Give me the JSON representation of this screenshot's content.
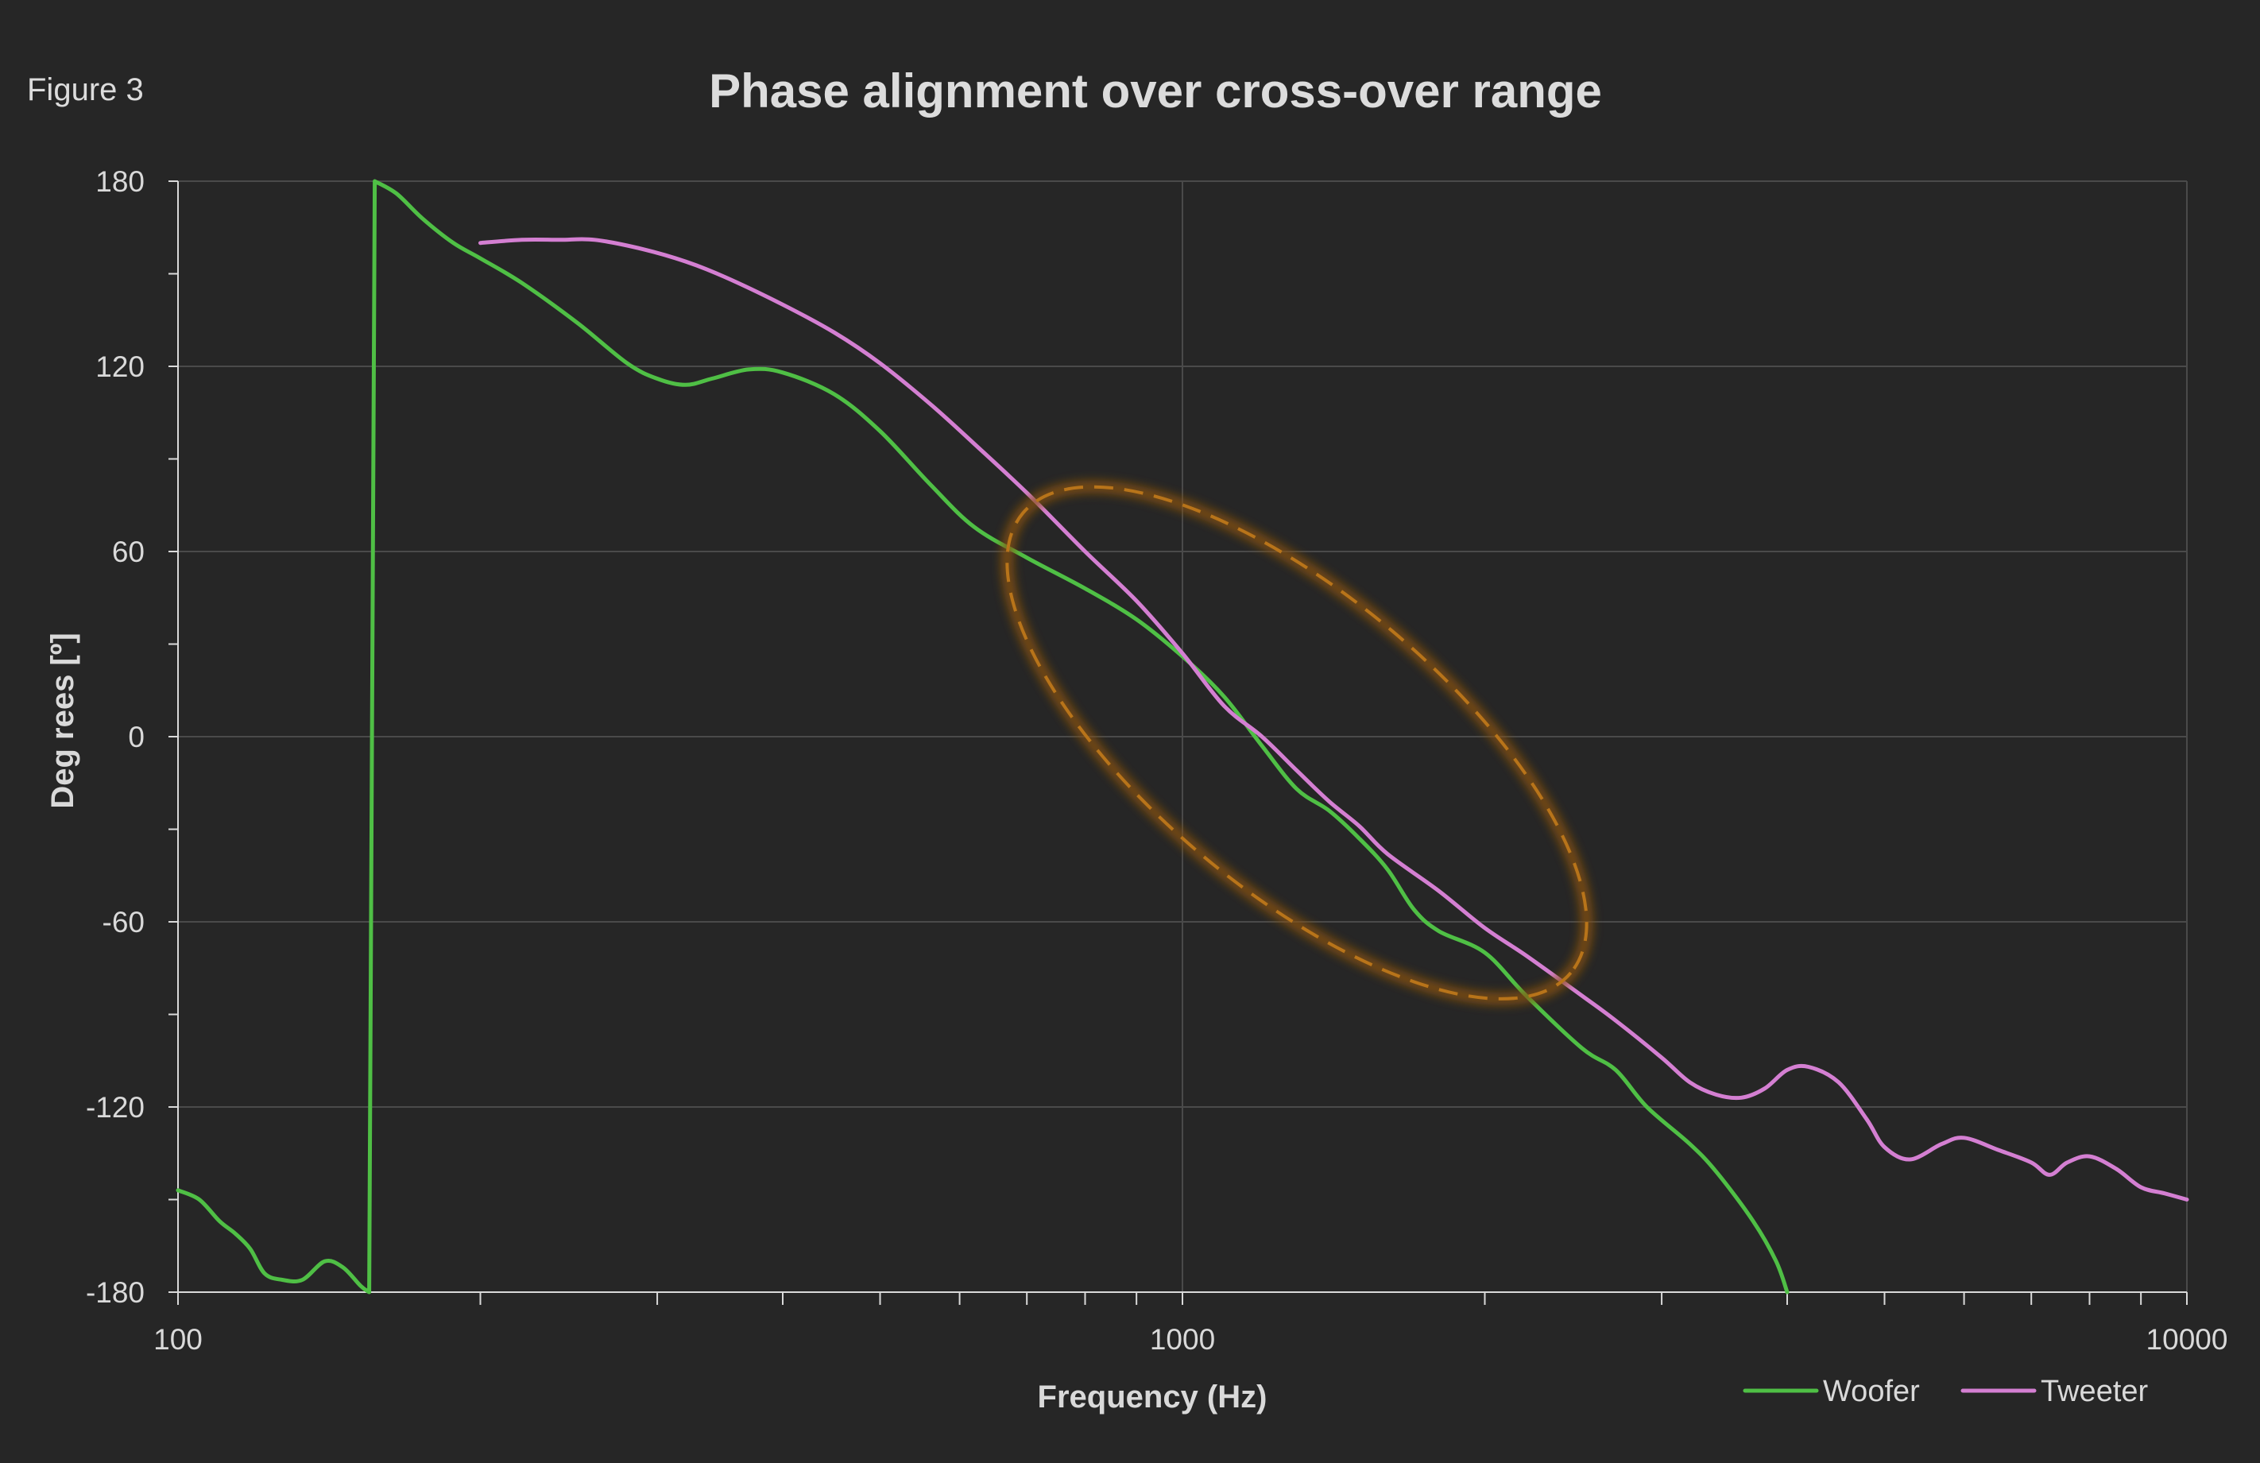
{
  "figure_label": "Figure 3",
  "colors": {
    "background": "#262626",
    "gridline": "#4a4a4a",
    "axis": "#d9d9d9",
    "text": "#d9d9d9",
    "highlight": "#b8741a"
  },
  "chart_data": {
    "type": "line",
    "title": "Phase alignment over cross-over range",
    "xlabel": "Frequency (Hz)",
    "ylabel": "Deg rees [º]",
    "x_scale": "log",
    "xlim": [
      100,
      10000
    ],
    "ylim": [
      -180,
      180
    ],
    "x_tick_labels": [
      "100",
      "1000",
      "10000"
    ],
    "y_tick_labels": [
      "180",
      "120",
      "60",
      "0",
      "-60",
      "-120",
      "-180"
    ],
    "grid": true,
    "legend_position": "bottom-right",
    "series": [
      {
        "name": "Woofer",
        "color": "#4fbf45",
        "points": [
          [
            100,
            -147
          ],
          [
            105,
            -150
          ],
          [
            110,
            -157
          ],
          [
            114,
            -161
          ],
          [
            118,
            -166
          ],
          [
            122,
            -174
          ],
          [
            127,
            -176
          ],
          [
            133,
            -176
          ],
          [
            140,
            -170
          ],
          [
            146,
            -172
          ],
          [
            152,
            -178
          ],
          [
            155,
            -180
          ],
          [
            157,
            180
          ],
          [
            165,
            176
          ],
          [
            175,
            168
          ],
          [
            188,
            160
          ],
          [
            200,
            155
          ],
          [
            220,
            147
          ],
          [
            250,
            134
          ],
          [
            280,
            121
          ],
          [
            300,
            116
          ],
          [
            320,
            114
          ],
          [
            340,
            116
          ],
          [
            370,
            119
          ],
          [
            400,
            118
          ],
          [
            450,
            111
          ],
          [
            500,
            99
          ],
          [
            560,
            82
          ],
          [
            620,
            68
          ],
          [
            700,
            58
          ],
          [
            800,
            48
          ],
          [
            900,
            38
          ],
          [
            1000,
            26
          ],
          [
            1100,
            13
          ],
          [
            1200,
            -3
          ],
          [
            1300,
            -17
          ],
          [
            1400,
            -24
          ],
          [
            1500,
            -33
          ],
          [
            1600,
            -43
          ],
          [
            1700,
            -56
          ],
          [
            1800,
            -63
          ],
          [
            2000,
            -70
          ],
          [
            2200,
            -84
          ],
          [
            2500,
            -101
          ],
          [
            2700,
            -108
          ],
          [
            2900,
            -120
          ],
          [
            3200,
            -132
          ],
          [
            3400,
            -141
          ],
          [
            3700,
            -157
          ],
          [
            3900,
            -170
          ],
          [
            4000,
            -180
          ]
        ]
      },
      {
        "name": "Tweeter",
        "color": "#d47fd2",
        "points": [
          [
            200,
            160
          ],
          [
            220,
            161
          ],
          [
            240,
            161
          ],
          [
            260,
            161
          ],
          [
            290,
            158
          ],
          [
            320,
            154
          ],
          [
            350,
            149
          ],
          [
            400,
            140
          ],
          [
            450,
            131
          ],
          [
            500,
            121
          ],
          [
            560,
            108
          ],
          [
            620,
            95
          ],
          [
            700,
            79
          ],
          [
            800,
            60
          ],
          [
            900,
            44
          ],
          [
            1000,
            27
          ],
          [
            1100,
            10
          ],
          [
            1200,
            0
          ],
          [
            1300,
            -11
          ],
          [
            1400,
            -21
          ],
          [
            1500,
            -29
          ],
          [
            1600,
            -38
          ],
          [
            1800,
            -50
          ],
          [
            2000,
            -62
          ],
          [
            2200,
            -71
          ],
          [
            2500,
            -84
          ],
          [
            2700,
            -92
          ],
          [
            3000,
            -104
          ],
          [
            3200,
            -112
          ],
          [
            3400,
            -116
          ],
          [
            3600,
            -117
          ],
          [
            3800,
            -114
          ],
          [
            4000,
            -108
          ],
          [
            4200,
            -107
          ],
          [
            4500,
            -112
          ],
          [
            4800,
            -124
          ],
          [
            5000,
            -133
          ],
          [
            5300,
            -137
          ],
          [
            5700,
            -132
          ],
          [
            6000,
            -130
          ],
          [
            6500,
            -134
          ],
          [
            7000,
            -138
          ],
          [
            7300,
            -142
          ],
          [
            7600,
            -138
          ],
          [
            8000,
            -136
          ],
          [
            8500,
            -140
          ],
          [
            9000,
            -146
          ],
          [
            9500,
            -148
          ],
          [
            10000,
            -150
          ]
        ]
      }
    ]
  }
}
